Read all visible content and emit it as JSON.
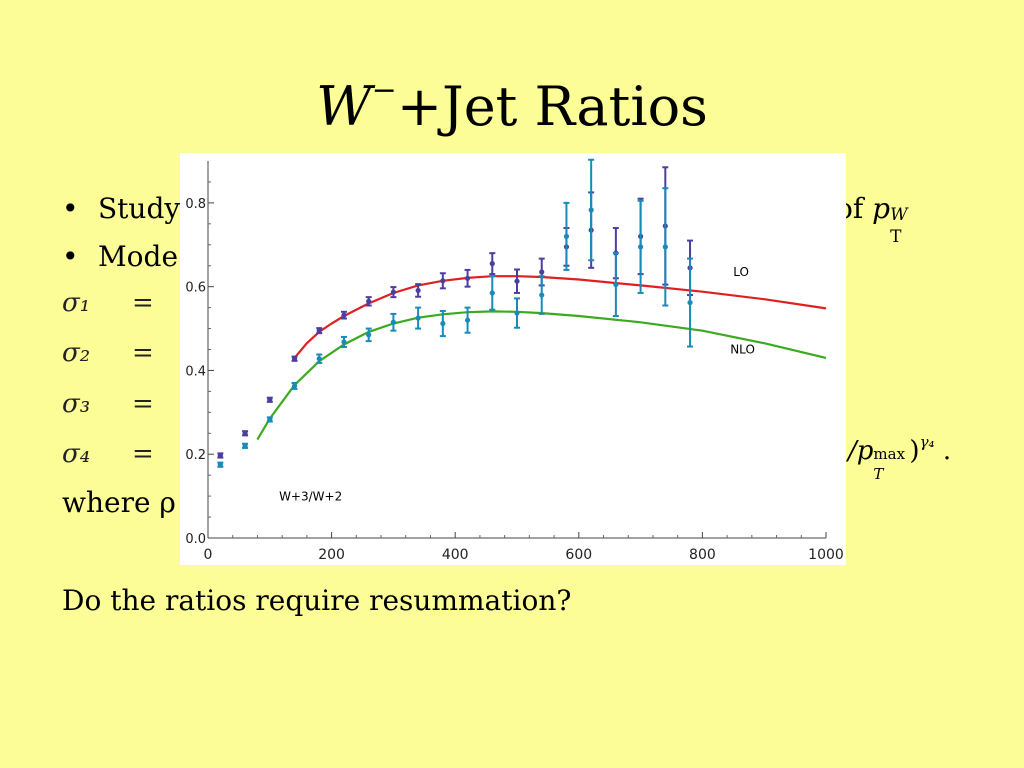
{
  "slide": {
    "title_w": "W",
    "title_sup": "−",
    "title_rest": "+Jet Ratios",
    "bullet1": "Study",
    "bullet1_right": "of",
    "bullet1_math": "p",
    "bullet1_math_sub": "T",
    "bullet1_math_sup": "W",
    "bullet2": "Mode",
    "sigma_lines": [
      "σ₁",
      "σ₂",
      "σ₃",
      "σ₄"
    ],
    "equals": "=",
    "sigma4_tail": "/p",
    "sigma4_tail_sub": "T",
    "sigma4_tail_sup": "max",
    "sigma4_tail_end": ")",
    "sigma4_tail_gamma": "γ₄",
    "sigma4_tail_dot": ".",
    "where": "where ρ",
    "question": "Do the ratios require resummation?"
  },
  "chart_data": {
    "type": "line",
    "title": "",
    "annotation": "W+3/W+2",
    "xlim": [
      0,
      1000
    ],
    "ylim": [
      0.0,
      0.9
    ],
    "x_ticks": [
      0,
      200,
      400,
      600,
      800,
      1000
    ],
    "y_ticks": [
      0.0,
      0.2,
      0.4,
      0.6,
      0.8
    ],
    "x_tick_labels": [
      "0",
      "200",
      "400",
      "600",
      "800",
      "1000"
    ],
    "y_tick_labels": [
      "0.0",
      "0.2",
      "0.4",
      "0.6",
      "0.8"
    ],
    "series": [
      {
        "name": "LO",
        "kind": "curve",
        "color": "#e02020",
        "x": [
          140,
          160,
          180,
          200,
          220,
          260,
          300,
          340,
          380,
          420,
          460,
          500,
          540,
          600,
          700,
          800,
          900,
          1000
        ],
        "y": [
          0.43,
          0.465,
          0.492,
          0.512,
          0.53,
          0.56,
          0.585,
          0.603,
          0.614,
          0.621,
          0.625,
          0.625,
          0.623,
          0.617,
          0.603,
          0.588,
          0.57,
          0.548
        ]
      },
      {
        "name": "NLO",
        "kind": "curve",
        "color": "#3aaa1e",
        "x": [
          80,
          100,
          140,
          180,
          220,
          260,
          300,
          340,
          380,
          420,
          460,
          500,
          540,
          600,
          700,
          800,
          900,
          1000
        ],
        "y": [
          0.235,
          0.285,
          0.365,
          0.422,
          0.462,
          0.492,
          0.512,
          0.526,
          0.534,
          0.539,
          0.541,
          0.54,
          0.537,
          0.53,
          0.515,
          0.495,
          0.465,
          0.43
        ]
      },
      {
        "name": "",
        "kind": "points",
        "color": "#4a3fa0",
        "x": [
          20,
          60,
          100,
          140,
          180,
          220,
          260,
          300,
          340,
          380,
          420,
          460,
          500,
          540,
          580,
          620,
          660,
          700,
          740,
          780
        ],
        "y": [
          0.197,
          0.25,
          0.33,
          0.428,
          0.495,
          0.532,
          0.565,
          0.587,
          0.591,
          0.614,
          0.62,
          0.655,
          0.613,
          0.635,
          0.695,
          0.735,
          0.68,
          0.72,
          0.745,
          0.645
        ],
        "err": [
          0.005,
          0.005,
          0.005,
          0.005,
          0.006,
          0.008,
          0.01,
          0.012,
          0.015,
          0.018,
          0.02,
          0.025,
          0.028,
          0.032,
          0.045,
          0.09,
          0.06,
          0.09,
          0.14,
          0.065
        ]
      },
      {
        "name": "",
        "kind": "points",
        "color": "#1a8ab8",
        "x": [
          20,
          60,
          100,
          140,
          180,
          220,
          260,
          300,
          340,
          380,
          420,
          460,
          500,
          540,
          580,
          620,
          660,
          700,
          740,
          780
        ],
        "y": [
          0.175,
          0.22,
          0.283,
          0.363,
          0.428,
          0.468,
          0.485,
          0.515,
          0.525,
          0.512,
          0.52,
          0.585,
          0.537,
          0.58,
          0.72,
          0.783,
          0.605,
          0.695,
          0.695,
          0.562
        ],
        "err": [
          0.005,
          0.005,
          0.005,
          0.007,
          0.01,
          0.012,
          0.015,
          0.02,
          0.025,
          0.03,
          0.03,
          0.04,
          0.035,
          0.045,
          0.08,
          0.12,
          0.075,
          0.11,
          0.14,
          0.105
        ]
      }
    ],
    "label_lo": "LO",
    "label_nlo": "NLO"
  }
}
